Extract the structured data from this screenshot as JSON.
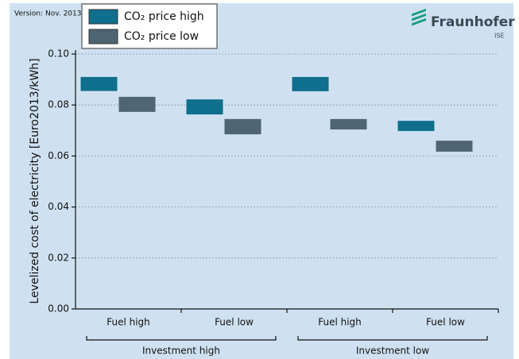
{
  "chart_data": {
    "type": "floating-bar",
    "version": "Version: Nov. 2013",
    "logo": "Fraunhofer",
    "logo_sub": "ISE",
    "y_label": "Levelized cost of electricity [Euro2013/kWh]",
    "categories": [
      "Fuel high",
      "Fuel low",
      "Fuel high",
      "Fuel low"
    ],
    "groups": [
      "Investment high",
      "Investment low"
    ],
    "series": [
      {
        "name": "CO₂ price high",
        "color": "#0f6f8c",
        "values": [
          [
            0.0855,
            0.091
          ],
          [
            0.0763,
            0.0822
          ],
          [
            0.0854,
            0.091
          ],
          [
            0.0698,
            0.0738
          ]
        ]
      },
      {
        "name": "CO₂ price low",
        "color": "#4f6571",
        "values": [
          [
            0.0773,
            0.0832
          ],
          [
            0.0685,
            0.0745
          ],
          [
            0.0704,
            0.0745
          ],
          [
            0.0617,
            0.066
          ]
        ]
      }
    ],
    "ylim": [
      0,
      0.1
    ],
    "yticks": [
      {
        "value": 0,
        "label": "0.00"
      },
      {
        "value": 0.02,
        "label": "0.02"
      },
      {
        "value": 0.04,
        "label": "0.04"
      },
      {
        "value": 0.06,
        "label": "0.06"
      },
      {
        "value": 0.08,
        "label": "0.08"
      },
      {
        "value": 0.1,
        "label": "0.10"
      }
    ],
    "grid": true,
    "legend": "top-left"
  }
}
